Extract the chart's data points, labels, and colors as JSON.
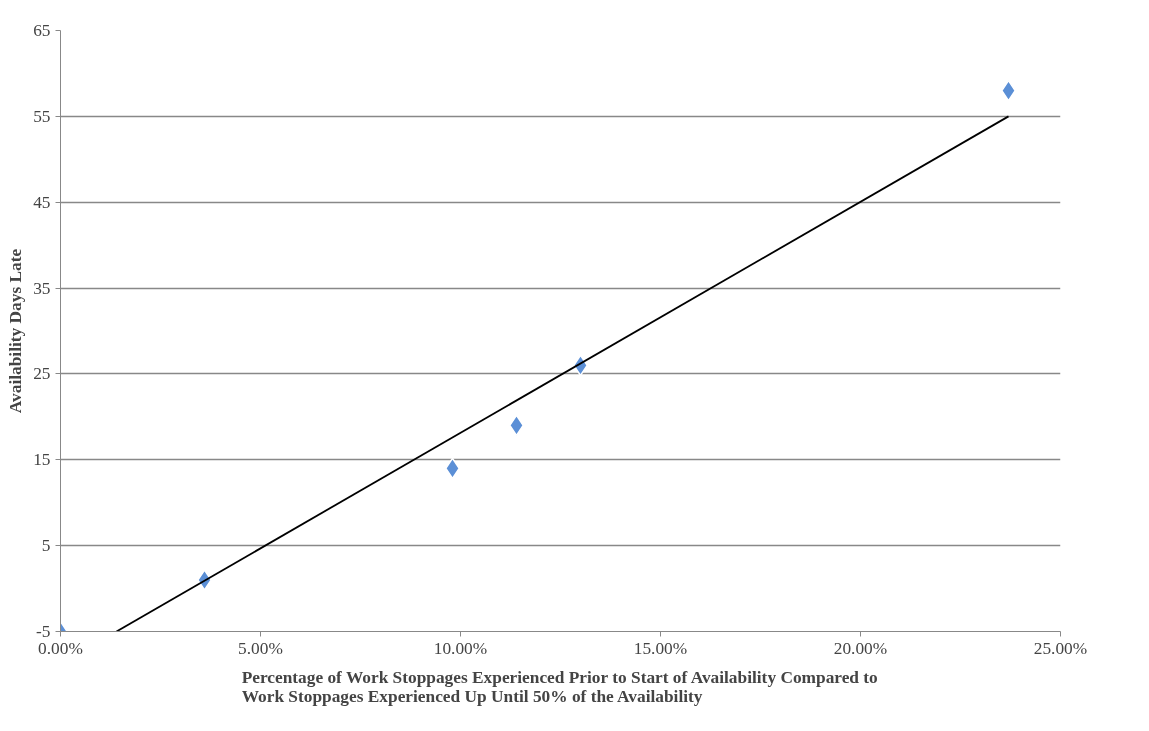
{
  "chart_data": {
    "type": "scatter",
    "xlabel": "Percentage of Work Stoppages Experienced Prior to Start of Availability Compared to\nWork Stoppages Experienced Up Until 50% of the Availability",
    "ylabel": "Availability Days Late",
    "series": [
      {
        "color": "#5b8fd6",
        "x": [
          0,
          3.6,
          9.8,
          11.4,
          13.0,
          23.7
        ],
        "values": [
          -5,
          1,
          14,
          19,
          26,
          58
        ],
        "marker": "diamond"
      },
      {
        "type": "line",
        "color": "#000000",
        "x": [
          1.4,
          23.7
        ],
        "values": [
          -5,
          55
        ],
        "line_style": "solid"
      }
    ],
    "xlim": [
      0,
      25
    ],
    "ylim": [
      -5,
      65
    ],
    "xticks": [
      {
        "value": 0,
        "label": "0.00%"
      },
      {
        "value": 5,
        "label": "5.00%"
      },
      {
        "value": 10,
        "label": "10.00%"
      },
      {
        "value": 15,
        "label": "15.00%"
      },
      {
        "value": 20,
        "label": "20.00%"
      },
      {
        "value": 25,
        "label": "25.00%"
      }
    ],
    "yticks": [
      -5,
      5,
      15,
      25,
      35,
      45,
      55,
      65
    ],
    "grid": "y"
  }
}
